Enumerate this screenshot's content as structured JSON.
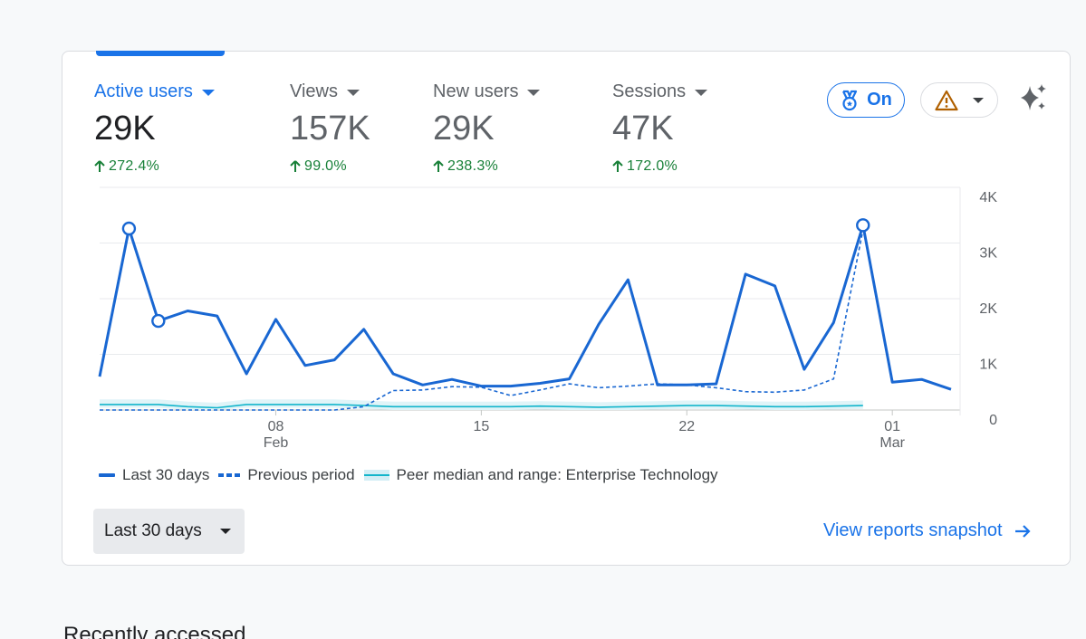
{
  "metrics": [
    {
      "label": "Active users",
      "value": "29K",
      "change": "272.4%",
      "active": true
    },
    {
      "label": "Views",
      "value": "157K",
      "change": "99.0%",
      "active": false
    },
    {
      "label": "New users",
      "value": "29K",
      "change": "238.3%",
      "active": false
    },
    {
      "label": "Sessions",
      "value": "47K",
      "change": "172.0%",
      "active": false
    }
  ],
  "toolbar": {
    "insights_label": "On"
  },
  "chart_data": {
    "type": "line",
    "title": "Active users",
    "xlabel": "",
    "ylabel": "",
    "ylim": [
      0,
      4000
    ],
    "y_ticks": [
      "0",
      "1K",
      "2K",
      "3K",
      "4K"
    ],
    "x_ticks": [
      {
        "day": "08",
        "month": "Feb",
        "index": 6
      },
      {
        "day": "15",
        "month": "",
        "index": 13
      },
      {
        "day": "22",
        "month": "",
        "index": 20
      },
      {
        "day": "01",
        "month": "Mar",
        "index": 27
      }
    ],
    "series": [
      {
        "name": "Last 30 days",
        "values": [
          600,
          3260,
          1600,
          1780,
          1690,
          650,
          1630,
          800,
          900,
          1450,
          650,
          450,
          550,
          430,
          430,
          480,
          560,
          1540,
          2340,
          450,
          450,
          470,
          2440,
          2230,
          730,
          1570,
          3320,
          500,
          550,
          370
        ],
        "anomalies": [
          1,
          2,
          26
        ]
      },
      {
        "name": "Previous period",
        "values": [
          0,
          0,
          0,
          0,
          0,
          0,
          0,
          0,
          0,
          60,
          350,
          360,
          420,
          410,
          260,
          360,
          470,
          400,
          430,
          470,
          450,
          400,
          330,
          320,
          360,
          560,
          3240
        ]
      },
      {
        "name": "Peer median and range: Enterprise Technology",
        "values": [
          100,
          100,
          100,
          60,
          40,
          100,
          100,
          100,
          100,
          80,
          60,
          60,
          60,
          60,
          60,
          70,
          60,
          50,
          60,
          70,
          80,
          80,
          70,
          60,
          60,
          70,
          80
        ]
      }
    ]
  },
  "legend": {
    "items": [
      "Last 30 days",
      "Previous period",
      "Peer median and range: Enterprise Technology"
    ]
  },
  "footer": {
    "range_label": "Last 30 days",
    "snapshot_link": "View reports snapshot"
  },
  "recent": {
    "title": "Recently accessed"
  },
  "colors": {
    "accent": "#1a73e8",
    "line": "#1967d2",
    "peer": "#12b5cb",
    "peer_band": "#e0f4f8",
    "positive": "#188038",
    "warning": "#b06000"
  }
}
